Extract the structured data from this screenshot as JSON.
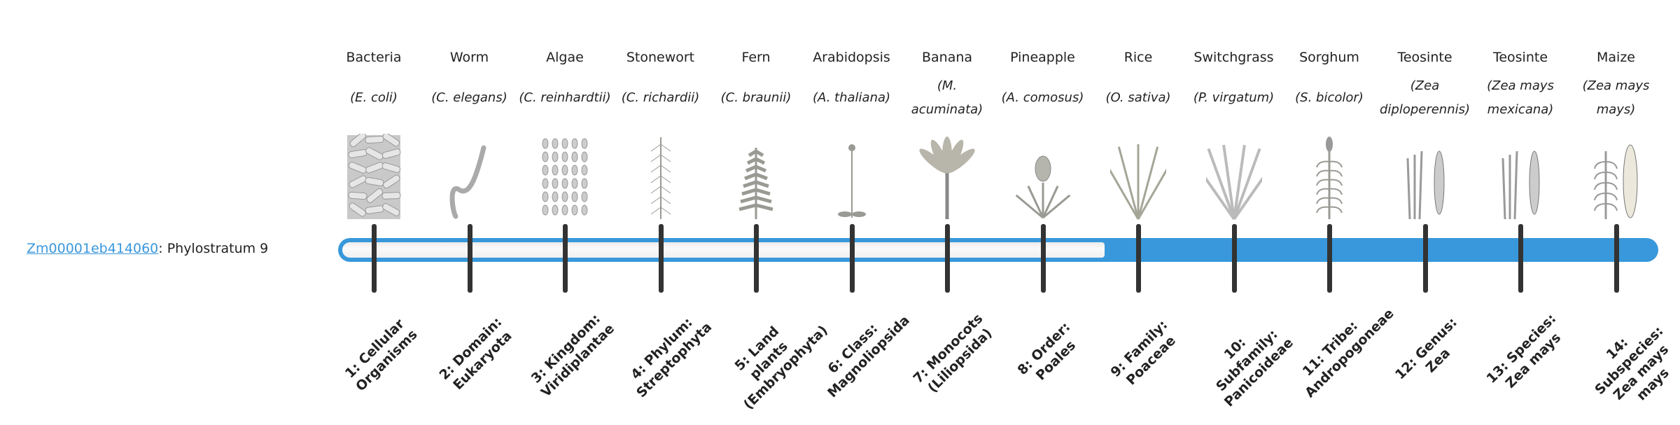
{
  "gene": {
    "id": "Zm00001eb414060",
    "suffix": ": Phylostratum 9"
  },
  "phylostratum": {
    "current": 9,
    "total": 14,
    "colors": {
      "fill": "#3898db",
      "empty": "#f4f4f4",
      "tick": "#333333"
    }
  },
  "organisms": [
    {
      "common": "Bacteria",
      "species": "(E. coli)",
      "icon": "bacteria-icon"
    },
    {
      "common": "Worm",
      "species": "(C. elegans)",
      "icon": "worm-icon"
    },
    {
      "common": "Algae",
      "species": "(C. reinhardtii)",
      "icon": "algae-icon"
    },
    {
      "common": "Stonewort",
      "species": "(C. richardii)",
      "icon": "stonewort-icon"
    },
    {
      "common": "Fern",
      "species": "(C. braunii)",
      "icon": "fern-icon"
    },
    {
      "common": "Arabidopsis",
      "species": "(A. thaliana)",
      "icon": "arabidopsis-icon"
    },
    {
      "common": "Banana",
      "species": "(M. acuminata)",
      "icon": "banana-icon"
    },
    {
      "common": "Pineapple",
      "species": "(A. comosus)",
      "icon": "pineapple-icon"
    },
    {
      "common": "Rice",
      "species": "(O. sativa)",
      "icon": "rice-icon"
    },
    {
      "common": "Switchgrass",
      "species": "(P. virgatum)",
      "icon": "switchgrass-icon"
    },
    {
      "common": "Sorghum",
      "species": "(S. bicolor)",
      "icon": "sorghum-icon"
    },
    {
      "common": "Teosinte",
      "species": "(Zea diploperennis)",
      "icon": "teosinte-icon"
    },
    {
      "common": "Teosinte",
      "species": "(Zea mays mexicana)",
      "icon": "teosinte-icon"
    },
    {
      "common": "Maize",
      "species": "(Zea mays mays)",
      "icon": "maize-icon"
    }
  ],
  "levels": [
    "1: Cellular Organisms",
    "2: Domain: Eukaryota",
    "3: Kingdom: Viridiplantae",
    "4: Phylum: Streptophyta",
    "5: Land plants (Embryophyta)",
    "6: Class: Magnoliopsida",
    "7: Monocots (Liliopsida)",
    "8: Order: Poales",
    "9: Family: Poaceae",
    "10: Subfamily: Panicoideae",
    "11: Tribe: Andropogoneae",
    "12: Genus: Zea",
    "13: Species: Zea mays",
    "14: Subspecies: Zea mays mays"
  ]
}
